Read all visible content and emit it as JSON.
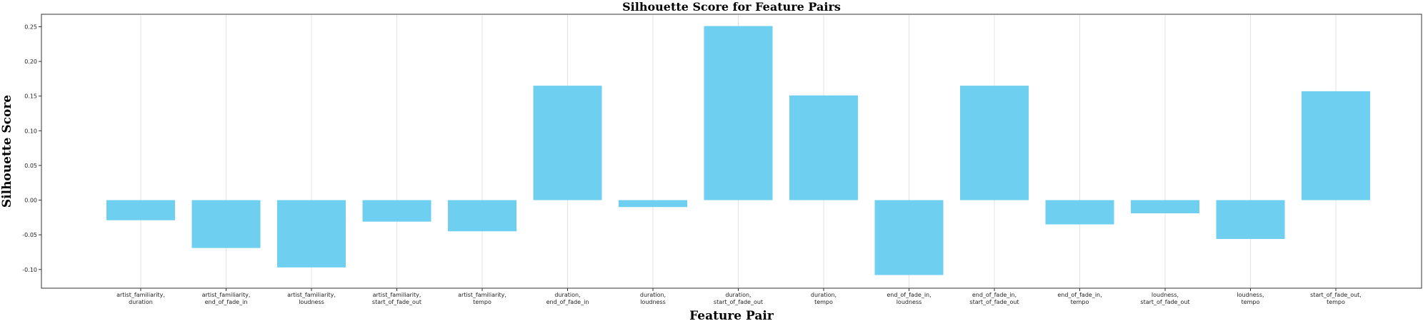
{
  "chart_data": {
    "type": "bar",
    "title": "Silhouette Score for Feature Pairs",
    "xlabel": "Feature Pair",
    "ylabel": "Silhouette Score",
    "ylim": [
      -0.127,
      0.268
    ],
    "yticks": [
      "0.25",
      "0.20",
      "0.15",
      "0.10",
      "0.05",
      "0.00",
      "-0.05",
      "-0.10"
    ],
    "ytick_values": [
      0.25,
      0.2,
      0.15,
      0.1,
      0.05,
      0.0,
      -0.05,
      -0.1
    ],
    "grid": "vertical",
    "bar_color": "#6ecff0",
    "categories": [
      [
        "artist_familiarity,",
        "duration"
      ],
      [
        "artist_familiarity,",
        "end_of_fade_in"
      ],
      [
        "artist_familiarity,",
        "loudness"
      ],
      [
        "artist_familiarity,",
        "start_of_fade_out"
      ],
      [
        "artist_familiarity,",
        "tempo"
      ],
      [
        "duration,",
        "end_of_fade_in"
      ],
      [
        "duration,",
        "loudness"
      ],
      [
        "duration,",
        "start_of_fade_out"
      ],
      [
        "duration,",
        "tempo"
      ],
      [
        "end_of_fade_in,",
        "loudness"
      ],
      [
        "end_of_fade_in,",
        "start_of_fade_out"
      ],
      [
        "end_of_fade_in,",
        "tempo"
      ],
      [
        "loudness,",
        "start_of_fade_out"
      ],
      [
        "loudness,",
        "tempo"
      ],
      [
        "start_of_fade_out,",
        "tempo"
      ]
    ],
    "values": [
      -0.029,
      -0.069,
      -0.097,
      -0.031,
      -0.045,
      0.165,
      -0.01,
      0.251,
      0.151,
      -0.108,
      0.165,
      -0.035,
      -0.019,
      -0.056,
      0.157
    ]
  }
}
